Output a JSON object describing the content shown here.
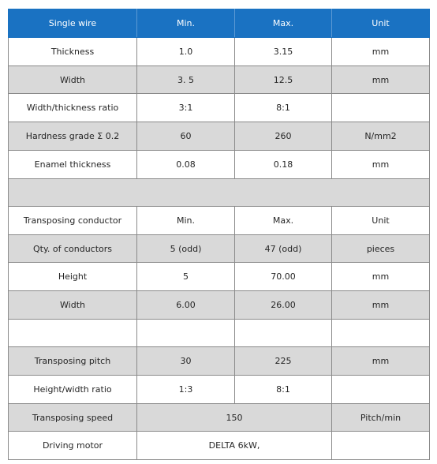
{
  "table": {
    "header": [
      "Single wire",
      "Min.",
      "Max.",
      "Unit"
    ],
    "rows": [
      [
        "Thickness",
        "1.0",
        "3.15",
        "mm"
      ],
      [
        "Width",
        "3. 5",
        "12.5",
        "mm"
      ],
      [
        "Width/thickness ratio",
        "3:1",
        "8:1",
        ""
      ],
      [
        "Hardness grade Σ 0.2",
        "60",
        "260",
        "N/mm2"
      ],
      [
        "Enamel thickness",
        "0.08",
        "0.18",
        "mm"
      ],
      [
        "",
        "",
        "",
        ""
      ],
      [
        "Transposing conductor",
        "Min.",
        "Max.",
        "Unit"
      ],
      [
        "Qty. of conductors",
        "5 (odd)",
        "47 (odd)",
        "pieces"
      ],
      [
        "Height",
        "5",
        "70.00",
        "mm"
      ],
      [
        "Width",
        "6.00",
        "26.00",
        "mm"
      ],
      [
        "",
        "",
        "",
        ""
      ],
      [
        "Transposing pitch",
        "30",
        "225",
        "mm"
      ],
      [
        "Height/width ratio",
        "1:3",
        "8:1",
        ""
      ]
    ],
    "speed_row": {
      "label": "Transposing speed",
      "value": "150",
      "unit": "Pitch/min"
    },
    "motor_row": {
      "label": "Driving motor",
      "value": "DELTA 6kW,",
      "unit": ""
    }
  },
  "colors": {
    "header_bg": "#1a72c2",
    "shaded_row": "#d9d9d9",
    "border": "#8a8a8a"
  }
}
